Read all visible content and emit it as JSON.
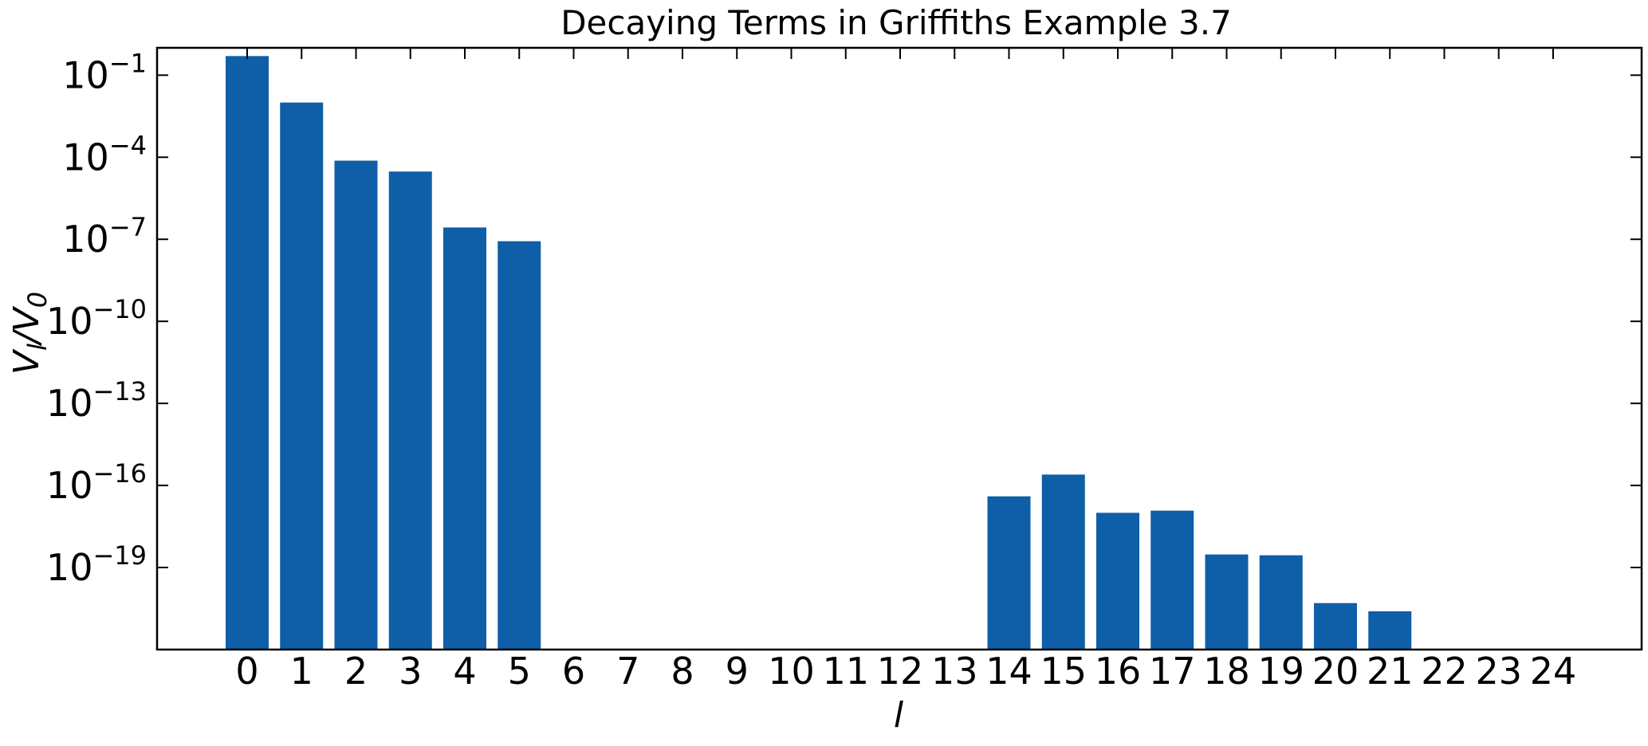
{
  "chart_data": {
    "type": "bar",
    "title": "Decaying Terms in Griffiths Example 3.7",
    "xlabel": "l",
    "ylabel": {
      "base": "V",
      "subscript_1": "l",
      "separator": "/",
      "base_2": "V",
      "subscript_2": "0"
    },
    "y_scale": "log",
    "ylim": [
      1e-22,
      1.0
    ],
    "categories": [
      "0",
      "1",
      "2",
      "3",
      "4",
      "5",
      "6",
      "7",
      "8",
      "9",
      "10",
      "11",
      "12",
      "13",
      "14",
      "15",
      "16",
      "17",
      "18",
      "19",
      "20",
      "21",
      "22",
      "23",
      "24"
    ],
    "values": [
      0.5,
      0.01,
      7.5e-05,
      3e-05,
      2.7e-07,
      8.5e-08,
      0,
      0,
      0,
      0,
      0,
      0,
      0,
      0,
      4e-17,
      2.5e-16,
      1e-17,
      1.2e-17,
      3e-19,
      2.8e-19,
      5e-21,
      2.5e-21,
      0,
      0,
      0
    ],
    "yticks": [
      {
        "value": 0.1,
        "base": "10",
        "exp": "−1"
      },
      {
        "value": 0.0001,
        "base": "10",
        "exp": "−4"
      },
      {
        "value": 1e-07,
        "base": "10",
        "exp": "−7"
      },
      {
        "value": 1e-10,
        "base": "10",
        "exp": "−10"
      },
      {
        "value": 1e-13,
        "base": "10",
        "exp": "−13"
      },
      {
        "value": 1e-16,
        "base": "10",
        "exp": "−16"
      },
      {
        "value": 1e-19,
        "base": "10",
        "exp": "−19"
      }
    ],
    "bar_color": "#0f5ea8",
    "grid": false,
    "ticks_direction": "in"
  }
}
